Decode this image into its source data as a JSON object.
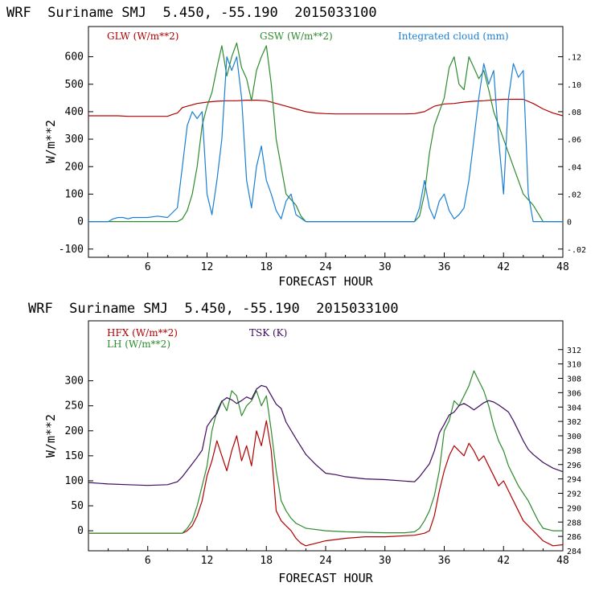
{
  "chart_data": [
    {
      "type": "line",
      "header": "WRF  Suriname SMJ  5.450, -55.190  2015033100",
      "xlabel": "FORECAST HOUR",
      "ylabel": "W/m**2",
      "xlim": [
        0,
        48
      ],
      "xticks": [
        6,
        12,
        18,
        24,
        30,
        36,
        42,
        48
      ],
      "ylim": [
        -130,
        710
      ],
      "yticks": [
        -100,
        0,
        100,
        200,
        300,
        400,
        500,
        600
      ],
      "y2lim": [
        -0.026,
        0.142
      ],
      "y2ticks": [
        -0.02,
        0,
        0.02,
        0.04,
        0.06,
        0.08,
        0.1,
        0.12
      ],
      "y2ticklabels": [
        "-.02",
        "0",
        ".02",
        ".04",
        ".06",
        ".08",
        ".10",
        ".12"
      ],
      "series": [
        {
          "name": "GLW (W/m**2)",
          "axis": "left",
          "color": "#b00000",
          "x": [
            0,
            1,
            2,
            3,
            4,
            5,
            6,
            7,
            8,
            8.5,
            9,
            9.5,
            10,
            10.5,
            11,
            12,
            13,
            14,
            15,
            16,
            17,
            18,
            19,
            20,
            21,
            22,
            23,
            24,
            25,
            26,
            27,
            28,
            29,
            30,
            31,
            32,
            33,
            34,
            35,
            36,
            37,
            38,
            39,
            40,
            41,
            42,
            43,
            44,
            45,
            46,
            47,
            48
          ],
          "y": [
            385,
            385,
            385,
            385,
            383,
            383,
            383,
            383,
            383,
            390,
            395,
            415,
            420,
            425,
            430,
            435,
            438,
            440,
            440,
            442,
            442,
            440,
            430,
            420,
            410,
            400,
            395,
            393,
            392,
            392,
            392,
            392,
            392,
            392,
            392,
            392,
            393,
            400,
            420,
            428,
            430,
            435,
            438,
            440,
            443,
            445,
            445,
            445,
            430,
            410,
            395,
            385
          ]
        },
        {
          "name": "GSW (W/m**2)",
          "axis": "left",
          "color": "#2e8b2e",
          "x": [
            0,
            9,
            9.5,
            10,
            10.5,
            11,
            11.5,
            12,
            12.5,
            13,
            13.5,
            14,
            14.5,
            15,
            15.5,
            16,
            16.5,
            17,
            17.5,
            18,
            18.5,
            19,
            19.5,
            20,
            20.5,
            21,
            21.5,
            22,
            33,
            33.5,
            34,
            34.5,
            35,
            35.5,
            36,
            36.5,
            37,
            37.5,
            38,
            38.5,
            39,
            39.5,
            40,
            40.5,
            41,
            41.5,
            42,
            42.5,
            43,
            43.5,
            44,
            44.5,
            45,
            45.5,
            46,
            48
          ],
          "y": [
            0,
            0,
            10,
            40,
            100,
            200,
            350,
            420,
            470,
            560,
            640,
            530,
            600,
            650,
            560,
            520,
            440,
            550,
            600,
            640,
            500,
            300,
            200,
            100,
            80,
            60,
            20,
            0,
            0,
            20,
            100,
            250,
            350,
            400,
            450,
            560,
            600,
            500,
            480,
            600,
            560,
            520,
            550,
            480,
            400,
            350,
            300,
            250,
            200,
            150,
            100,
            80,
            60,
            30,
            0,
            0
          ]
        },
        {
          "name": "Integrated cloud (mm)",
          "axis": "right",
          "color": "#1a7fd4",
          "x": [
            0,
            2,
            2.5,
            3,
            3.5,
            4,
            4.5,
            5,
            6,
            7,
            8,
            9,
            9.5,
            10,
            10.5,
            11,
            11.5,
            12,
            12.5,
            13,
            13.5,
            14,
            14.5,
            15,
            15.5,
            16,
            16.5,
            17,
            17.5,
            18,
            18.5,
            19,
            19.5,
            20,
            20.5,
            21,
            22,
            33,
            33.5,
            34,
            34.5,
            35,
            35.5,
            36,
            36.5,
            37,
            37.5,
            38,
            38.5,
            39,
            39.5,
            40,
            40.5,
            41,
            41.5,
            42,
            42.5,
            43,
            43.5,
            44,
            44.5,
            45,
            48
          ],
          "y": [
            0,
            0,
            0.002,
            0.003,
            0.003,
            0.002,
            0.003,
            0.003,
            0.003,
            0.004,
            0.003,
            0.01,
            0.04,
            0.07,
            0.08,
            0.075,
            0.08,
            0.02,
            0.005,
            0.03,
            0.06,
            0.12,
            0.11,
            0.12,
            0.09,
            0.03,
            0.01,
            0.04,
            0.055,
            0.03,
            0.02,
            0.008,
            0.002,
            0.015,
            0.02,
            0.005,
            0,
            0,
            0.01,
            0.03,
            0.01,
            0.002,
            0.015,
            0.02,
            0.008,
            0.002,
            0.005,
            0.01,
            0.03,
            0.06,
            0.09,
            0.115,
            0.1,
            0.11,
            0.06,
            0.02,
            0.09,
            0.115,
            0.105,
            0.11,
            0.02,
            0,
            0
          ]
        }
      ]
    },
    {
      "type": "line",
      "header": "WRF  Suriname SMJ  5.450, -55.190  2015033100",
      "xlabel": "FORECAST HOUR",
      "ylabel": "W/m**2",
      "xlim": [
        0,
        48
      ],
      "xticks": [
        6,
        12,
        18,
        24,
        30,
        36,
        42,
        48
      ],
      "ylim": [
        -40,
        420
      ],
      "yticks": [
        0,
        50,
        100,
        150,
        200,
        250,
        300
      ],
      "y2lim": [
        284.0,
        316.0
      ],
      "y2ticks": [
        284,
        286,
        288,
        290,
        292,
        294,
        296,
        298,
        300,
        302,
        304,
        306,
        308,
        310,
        312
      ],
      "series": [
        {
          "name": "HFX (W/m**2)",
          "axis": "left",
          "color": "#b00000",
          "x": [
            0,
            9.5,
            10,
            10.5,
            11,
            11.5,
            12,
            12.5,
            13,
            13.5,
            14,
            14.5,
            15,
            15.5,
            16,
            16.5,
            17,
            17.5,
            18,
            18.5,
            19,
            19.5,
            20,
            20.5,
            21,
            21.5,
            22,
            23,
            24,
            26,
            28,
            30,
            31,
            32,
            33,
            34,
            34.5,
            35,
            35.5,
            36,
            36.5,
            37,
            37.5,
            38,
            38.5,
            39,
            39.5,
            40,
            40.5,
            41,
            41.5,
            42,
            42.5,
            43,
            43.5,
            44,
            44.5,
            45,
            45.5,
            46,
            47,
            48
          ],
          "y": [
            -5,
            -5,
            0,
            10,
            30,
            60,
            110,
            140,
            180,
            150,
            120,
            160,
            190,
            140,
            170,
            130,
            200,
            170,
            220,
            160,
            40,
            20,
            10,
            0,
            -15,
            -25,
            -30,
            -25,
            -20,
            -15,
            -12,
            -12,
            -11,
            -10,
            -9,
            -5,
            0,
            30,
            80,
            120,
            150,
            170,
            160,
            150,
            175,
            160,
            140,
            150,
            130,
            110,
            90,
            100,
            80,
            60,
            40,
            20,
            10,
            0,
            -10,
            -20,
            -30,
            -28
          ]
        },
        {
          "name": "LH (W/m**2)",
          "axis": "left",
          "color": "#2e8b2e",
          "x": [
            0,
            9.5,
            10,
            10.5,
            11,
            11.5,
            12,
            12.5,
            13,
            13.5,
            14,
            14.5,
            15,
            15.5,
            16,
            16.5,
            17,
            17.5,
            18,
            18.5,
            19,
            19.5,
            20,
            20.5,
            21,
            21.5,
            22,
            24,
            26,
            28,
            30,
            32,
            33,
            33.5,
            34,
            34.5,
            35,
            35.5,
            36,
            36.5,
            37,
            37.5,
            38,
            38.5,
            39,
            39.5,
            40,
            40.5,
            41,
            41.5,
            42,
            42.5,
            43,
            43.5,
            44,
            44.5,
            45,
            45.5,
            46,
            47,
            48
          ],
          "y": [
            -5,
            -5,
            5,
            20,
            50,
            90,
            130,
            200,
            240,
            260,
            240,
            280,
            270,
            230,
            250,
            260,
            280,
            250,
            270,
            200,
            120,
            60,
            40,
            25,
            15,
            10,
            5,
            0,
            -2,
            -3,
            -4,
            -4,
            -2,
            5,
            20,
            40,
            70,
            120,
            200,
            220,
            260,
            250,
            270,
            290,
            320,
            300,
            280,
            250,
            210,
            180,
            160,
            130,
            110,
            90,
            75,
            60,
            40,
            20,
            5,
            0,
            0
          ]
        },
        {
          "name": "TSK (K)",
          "axis": "right",
          "color": "#3d0a5e",
          "x": [
            0,
            2,
            4,
            6,
            8,
            9,
            9.5,
            10,
            10.5,
            11,
            11.5,
            12,
            12.5,
            13,
            13.5,
            14,
            14.5,
            15,
            15.5,
            16,
            16.5,
            17,
            17.5,
            18,
            18.5,
            19,
            19.5,
            20,
            21,
            22,
            23,
            24,
            25,
            26,
            28,
            30,
            32,
            33,
            33.5,
            34,
            34.5,
            35,
            35.5,
            36,
            36.5,
            37,
            37.5,
            38,
            38.5,
            39,
            39.5,
            40,
            40.5,
            41,
            41.5,
            42,
            42.5,
            43,
            43.5,
            44,
            44.5,
            45,
            46,
            47,
            48
          ],
          "y": [
            293.5,
            293.3,
            293.2,
            293.1,
            293.2,
            293.6,
            294.3,
            295.2,
            296.1,
            297.0,
            298.0,
            301.3,
            302.3,
            303.1,
            304.8,
            305.3,
            305.0,
            304.5,
            304.9,
            305.4,
            305.1,
            306.5,
            307.0,
            306.8,
            305.6,
            304.4,
            303.8,
            301.9,
            299.6,
            297.4,
            296.0,
            294.8,
            294.6,
            294.3,
            294.0,
            293.9,
            293.7,
            293.6,
            294.3,
            295.2,
            296.1,
            297.9,
            300.4,
            301.6,
            302.9,
            303.3,
            304.2,
            304.5,
            304.1,
            303.6,
            304.1,
            304.6,
            304.9,
            304.7,
            304.3,
            303.8,
            303.3,
            302.1,
            300.7,
            299.3,
            298.1,
            297.4,
            296.3,
            295.5,
            295.0
          ]
        }
      ]
    }
  ]
}
